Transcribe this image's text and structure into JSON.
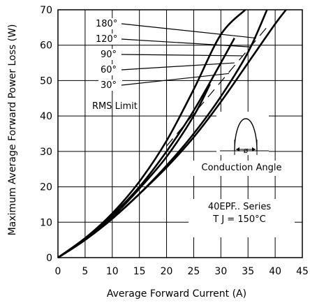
{
  "chart_data": {
    "type": "line",
    "xlabel": "Average Forward Current (A)",
    "ylabel": "Maximum Average Forward Power Loss (W)",
    "xlim": [
      0,
      45
    ],
    "ylim": [
      0,
      70
    ],
    "x_ticks": [
      0,
      5,
      10,
      15,
      20,
      25,
      30,
      35,
      40,
      45
    ],
    "y_ticks": [
      0,
      10,
      20,
      30,
      40,
      50,
      60,
      70
    ],
    "grid": true,
    "series": [
      {
        "name": "180°",
        "x": [
          0,
          5,
          10,
          15,
          20,
          25,
          28
        ],
        "y": [
          0,
          5,
          11.5,
          19.5,
          28.5,
          40,
          49
        ]
      },
      {
        "name": "120°",
        "x": [
          0,
          5,
          10,
          15,
          20,
          25,
          30,
          35,
          40,
          42
        ],
        "y": [
          0,
          5,
          11,
          18,
          25.5,
          34,
          44,
          55,
          66,
          70
        ]
      },
      {
        "name": "90°",
        "x": [
          0,
          5,
          10,
          15,
          20,
          25,
          30,
          35,
          38.5
        ],
        "y": [
          0,
          5,
          11,
          18,
          26,
          35,
          45.5,
          58,
          70
        ]
      },
      {
        "name": "60°",
        "x": [
          0,
          5,
          10,
          15,
          20,
          25,
          30,
          32.5
        ],
        "y": [
          0,
          5.5,
          12,
          20,
          30,
          41.5,
          55,
          62
        ]
      },
      {
        "name": "30°",
        "x": [
          0,
          5,
          10,
          15,
          20,
          25,
          30,
          34.5
        ],
        "y": [
          0,
          5.5,
          12.5,
          21.5,
          33,
          47.5,
          63,
          70
        ]
      }
    ],
    "rms_limit": {
      "label": "RMS Limit",
      "x": [
        20,
        39
      ],
      "y": [
        31.5,
        66
      ]
    },
    "annotations": {
      "conduction_angle": "Conduction Angle",
      "conduction_symbol": "ø",
      "series_name": "40EPF.. Series",
      "temperature": "T J = 150°C"
    }
  }
}
